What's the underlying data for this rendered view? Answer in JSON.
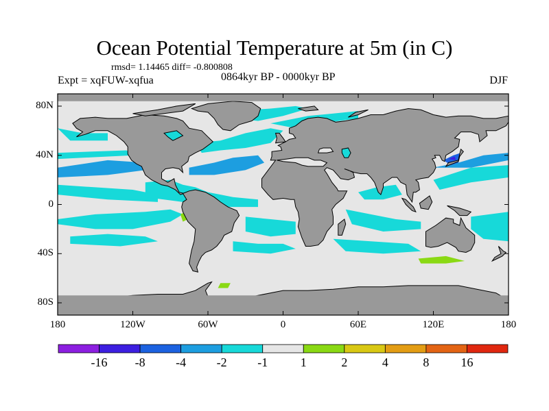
{
  "title": "Ocean Potential Temperature at 5m (in C)",
  "stats_line": "rmsd= 1.14465 diff= -0.800808",
  "experiment": "Expt = xqFUW-xqfua",
  "period": "0864kyr BP - 0000kyr BP",
  "season": "DJF",
  "map": {
    "lat_labels": [
      "80N",
      "40N",
      "0",
      "40S",
      "80S"
    ],
    "lat_values": [
      80,
      40,
      0,
      -40,
      -80
    ],
    "lon_labels": [
      "180",
      "120W",
      "60W",
      "0",
      "60E",
      "120E",
      "180"
    ],
    "lon_values": [
      -180,
      -120,
      -60,
      0,
      60,
      120,
      180
    ],
    "lat_range": [
      -90,
      90
    ],
    "lon_range": [
      -180,
      180
    ],
    "colors": {
      "land": "#999999",
      "neutral_ocean": "#e6e6e6",
      "coast": "#000000",
      "frame": "#000000"
    }
  },
  "colorbar": {
    "bin_colors": [
      "#8c1fe0",
      "#3d1fe0",
      "#1c62e0",
      "#1d9ee0",
      "#17d9d9",
      "#e6e6e6",
      "#8ad914",
      "#d9c814",
      "#e39d14",
      "#e36414",
      "#e0270f"
    ],
    "tick_labels": [
      "-16",
      "-8",
      "-4",
      "-2",
      "-1",
      "1",
      "2",
      "4",
      "8",
      "16"
    ]
  }
}
